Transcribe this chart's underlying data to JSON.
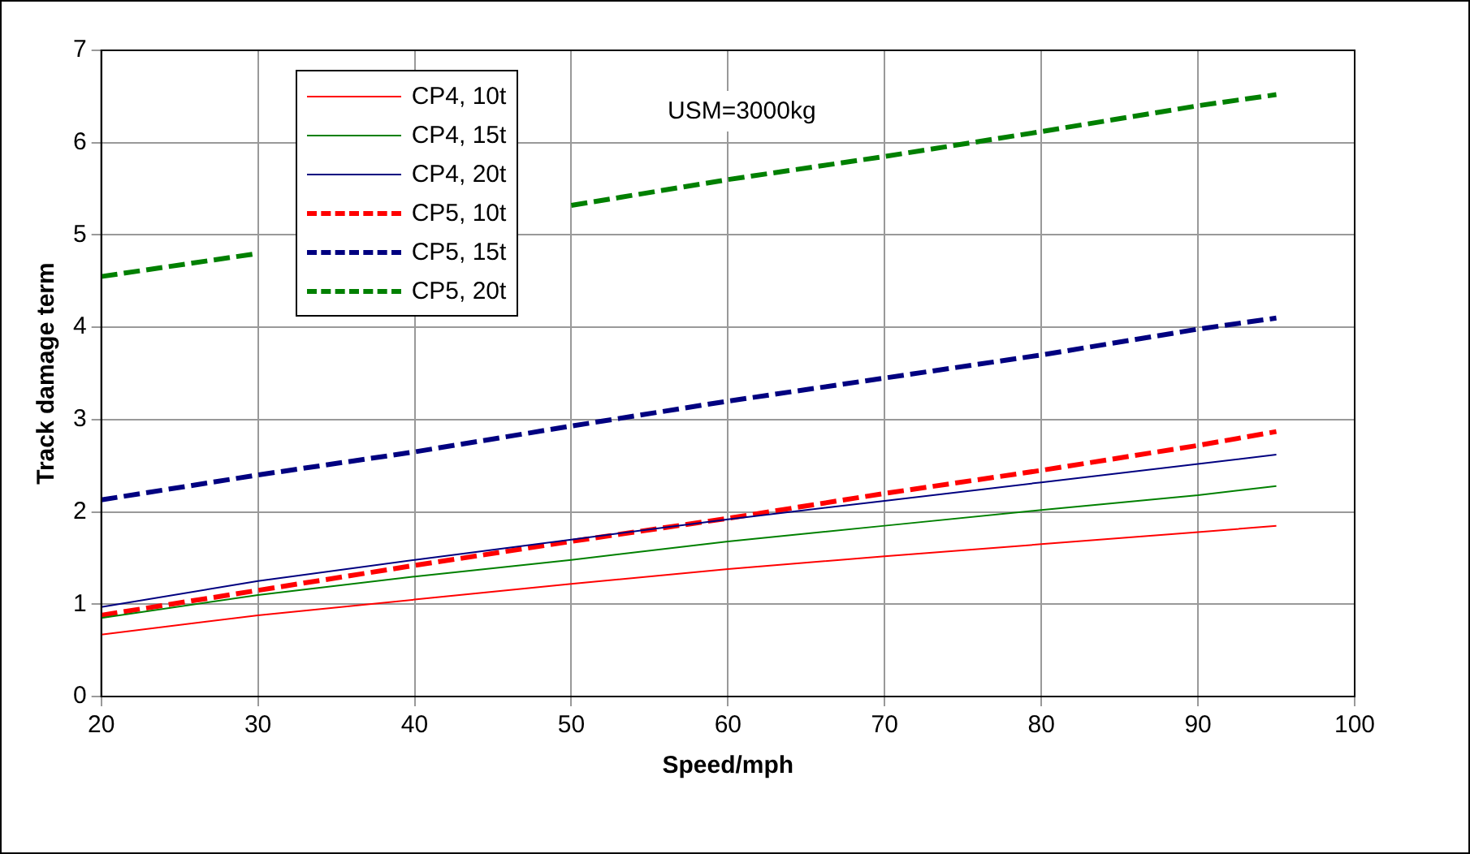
{
  "chart_data": {
    "type": "line",
    "xlabel": "Speed/mph",
    "ylabel": "Track damage term",
    "x": [
      20,
      30,
      40,
      50,
      60,
      70,
      80,
      90,
      95
    ],
    "xlim": [
      20,
      100
    ],
    "xticks": [
      20,
      30,
      40,
      50,
      60,
      70,
      80,
      90,
      100
    ],
    "ylim": [
      0,
      7
    ],
    "yticks": [
      0,
      1,
      2,
      3,
      4,
      5,
      6,
      7
    ],
    "grid": true,
    "legend": "top left",
    "marker": "none",
    "annotations": [
      "USM=3000kg"
    ],
    "series": [
      {
        "name": "CP4, 10t",
        "color": "#ff0000",
        "line_style": "solid",
        "values": [
          0.67,
          0.88,
          1.05,
          1.22,
          1.38,
          1.52,
          1.65,
          1.78,
          1.85
        ]
      },
      {
        "name": "CP4, 15t",
        "color": "#008000",
        "line_style": "solid",
        "values": [
          0.85,
          1.1,
          1.3,
          1.48,
          1.68,
          1.85,
          2.02,
          2.18,
          2.28
        ]
      },
      {
        "name": "CP4, 20t",
        "color": "#000080",
        "line_style": "solid",
        "values": [
          0.97,
          1.25,
          1.48,
          1.7,
          1.92,
          2.12,
          2.32,
          2.52,
          2.62
        ]
      },
      {
        "name": "CP5, 10t",
        "color": "#ff0000",
        "line_style": "dashed",
        "values": [
          0.88,
          1.15,
          1.42,
          1.68,
          1.93,
          2.2,
          2.45,
          2.72,
          2.87
        ]
      },
      {
        "name": "CP5, 15t",
        "color": "#000080",
        "line_style": "dashed",
        "values": [
          2.13,
          2.4,
          2.65,
          2.93,
          3.2,
          3.45,
          3.7,
          3.98,
          4.1
        ]
      },
      {
        "name": "CP5, 20t",
        "color": "#008000",
        "line_style": "dashed",
        "values": [
          4.55,
          4.8,
          null,
          5.32,
          5.6,
          5.85,
          6.12,
          6.4,
          6.52
        ]
      }
    ]
  }
}
